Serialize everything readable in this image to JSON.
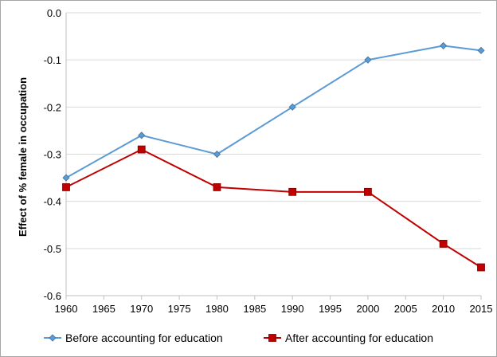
{
  "chart_data": {
    "type": "line",
    "title": "",
    "xlabel": "",
    "ylabel": "Effect of % female in occupation",
    "xlim": [
      1960,
      2015
    ],
    "ylim": [
      -0.6,
      0.0
    ],
    "x_ticks": [
      "1960",
      "1965",
      "1970",
      "1975",
      "1980",
      "1985",
      "1990",
      "1995",
      "2000",
      "2005",
      "2010",
      "2015"
    ],
    "y_ticks": [
      "0.0",
      "-0.1",
      "-0.2",
      "-0.3",
      "-0.4",
      "-0.5",
      "-0.6"
    ],
    "grid": "horizontal",
    "legend_position": "bottom",
    "series": [
      {
        "name": "Before accounting for education",
        "color": "#5b9bd5",
        "marker": "diamond",
        "x": [
          1960,
          1970,
          1980,
          1990,
          2000,
          2010,
          2015
        ],
        "values": [
          -0.35,
          -0.26,
          -0.3,
          -0.2,
          -0.1,
          -0.07,
          -0.08
        ]
      },
      {
        "name": "After accounting for education",
        "color": "#c00000",
        "marker": "square",
        "x": [
          1960,
          1970,
          1980,
          1990,
          2000,
          2010,
          2015
        ],
        "values": [
          -0.37,
          -0.29,
          -0.37,
          -0.38,
          -0.38,
          -0.49,
          -0.54
        ]
      }
    ]
  }
}
